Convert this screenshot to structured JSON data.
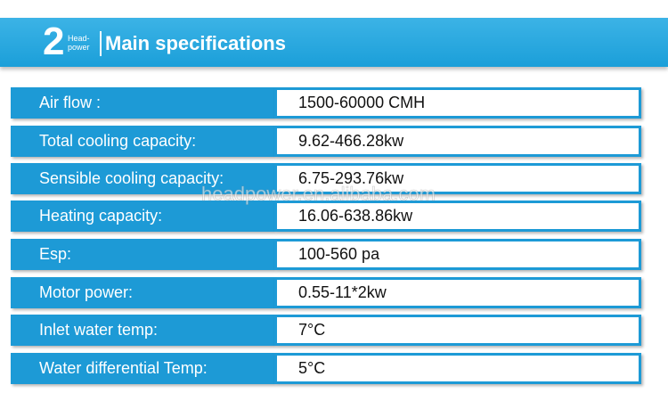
{
  "header": {
    "number": "2",
    "brand": [
      "Head-",
      "power"
    ],
    "title": "Main specifications"
  },
  "table": {
    "rows": [
      [
        "Air flow :",
        "1500-60000 CMH"
      ],
      [
        "Total cooling capacity:",
        "9.62-466.28kw"
      ],
      [
        "Sensible cooling capacity:",
        "6.75-293.76kw"
      ],
      [
        "Heating capacity:",
        "16.06-638.86kw"
      ],
      [
        "Esp:",
        "100-560 pa"
      ],
      [
        "Motor power:",
        "0.55-11*2kw"
      ],
      [
        "Inlet water temp:",
        "7°C"
      ],
      [
        "Water differential Temp:",
        "5°C"
      ]
    ]
  },
  "watermark": "headpower.en.alibaba.com"
}
